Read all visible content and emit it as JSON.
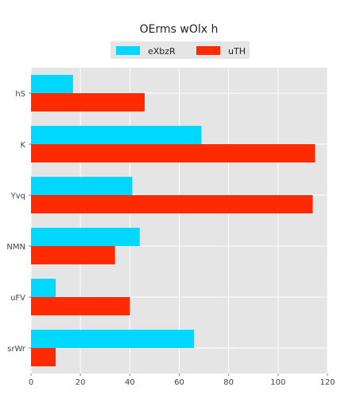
{
  "chart_data": {
    "type": "bar",
    "orientation": "horizontal",
    "title": "OErms wOlx h",
    "categories": [
      "hS",
      "K",
      "Yvq",
      "NMN",
      "uFV",
      "srWr"
    ],
    "series": [
      {
        "name": "eXbzR",
        "color": "#00d8ff",
        "values": [
          17,
          69,
          41,
          44,
          10,
          66
        ]
      },
      {
        "name": "uTH",
        "color": "#ff2a00",
        "values": [
          46,
          115,
          114,
          34,
          40,
          10
        ]
      }
    ],
    "xlim": [
      0,
      120
    ],
    "xticks": [
      0,
      20,
      40,
      60,
      80,
      100,
      120
    ],
    "xlabel": "",
    "ylabel": "",
    "grid": true,
    "legend_position": "top-center",
    "background": "#e5e5e5",
    "grid_color": "#ffffff"
  }
}
